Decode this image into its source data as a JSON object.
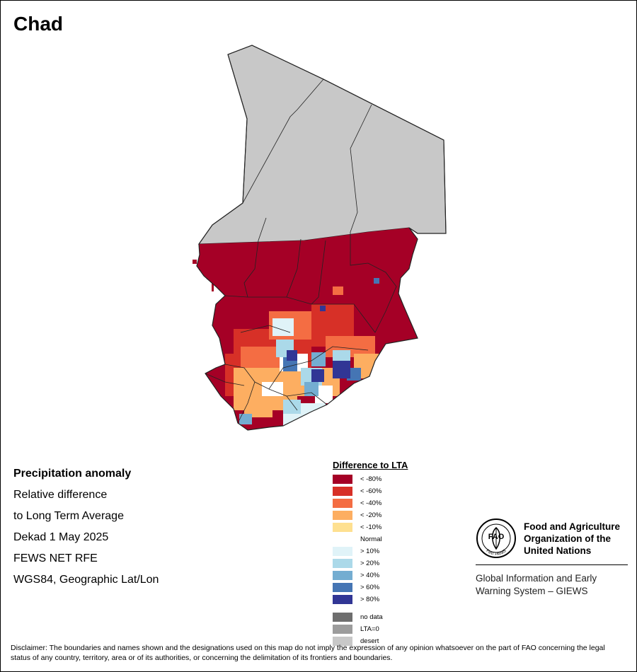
{
  "map": {
    "title": "Chad"
  },
  "info": {
    "heading": "Precipitation anomaly",
    "line1": "Relative difference",
    "line2": "to Long Term Average",
    "period": "Dekad 1 May 2025",
    "source": "FEWS NET RFE",
    "projection": "WGS84, Geographic Lat/Lon"
  },
  "legend": {
    "title": "Difference to LTA",
    "items": [
      {
        "label": "< -80%",
        "color": "#a50026"
      },
      {
        "label": "< -60%",
        "color": "#d73027"
      },
      {
        "label": "< -40%",
        "color": "#f46d43"
      },
      {
        "label": "< -20%",
        "color": "#fdae61"
      },
      {
        "label": "< -10%",
        "color": "#fee090"
      },
      {
        "label": "Normal",
        "color": "#ffffff"
      },
      {
        "label": "> 10%",
        "color": "#e0f3f8"
      },
      {
        "label": "> 20%",
        "color": "#abd9e9"
      },
      {
        "label": "> 40%",
        "color": "#74add1"
      },
      {
        "label": "> 60%",
        "color": "#4575b4"
      },
      {
        "label": "> 80%",
        "color": "#313695"
      }
    ],
    "extra": [
      {
        "label": "no data",
        "color": "#6e6e6e"
      },
      {
        "label": "LTA=0",
        "color": "#9c9c9c"
      },
      {
        "label": "desert",
        "color": "#c8c8c8"
      }
    ]
  },
  "fao": {
    "logo_text": "FAO",
    "logo_motto": "FIAT PANIS",
    "org_line1": "Food and Agriculture",
    "org_line2": "Organization of the",
    "org_line3": "United Nations",
    "giews_line1": "Global Information and Early",
    "giews_line2": "Warning System – GIEWS"
  },
  "disclaimer": "Disclaimer: The boundaries and names shown and the designations used on this map do not imply the expression of any opinion whatsoever on the part of FAO concerning the legal status of any country, territory, area or of its authorities, or concerning the delimitation of its frontiers and boundaries."
}
